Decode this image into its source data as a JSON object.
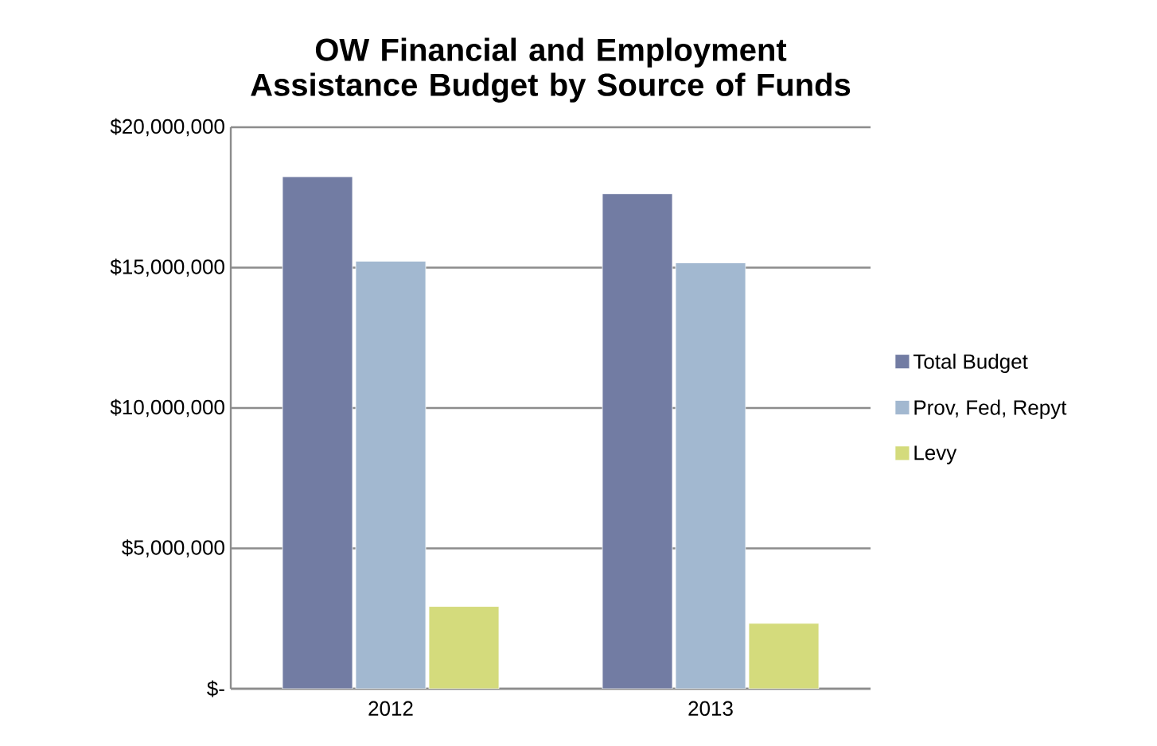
{
  "chart_data": {
    "type": "bar",
    "title": "OW Financial and Employment Assistance Budget by Source of Funds",
    "categories": [
      "2012",
      "2013"
    ],
    "series": [
      {
        "name": "Total Budget",
        "color": "#727ca3",
        "values": [
          18240000,
          17630000
        ]
      },
      {
        "name": "Prov, Fed, Repyt",
        "color": "#a2b8d0",
        "values": [
          15230000,
          15170000
        ]
      },
      {
        "name": "Levy",
        "color": "#d4db7c",
        "values": [
          2930000,
          2330000
        ]
      }
    ],
    "ylim": [
      0,
      20000000
    ],
    "yticks": [
      {
        "value": 0,
        "label": "$-"
      },
      {
        "value": 5000000,
        "label": "$5,000,000"
      },
      {
        "value": 10000000,
        "label": "$10,000,000"
      },
      {
        "value": 15000000,
        "label": "$15,000,000"
      },
      {
        "value": 20000000,
        "label": "$20,000,000"
      }
    ],
    "grid": "y",
    "legend": "right"
  }
}
